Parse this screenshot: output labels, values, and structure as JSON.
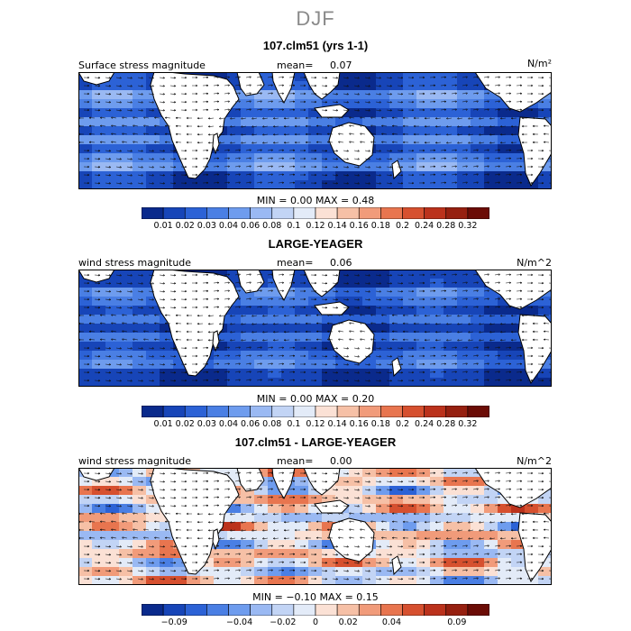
{
  "figure": {
    "title": "DJF"
  },
  "panels": [
    {
      "title": "107.clm51 (yrs 1-1)",
      "left_label": "Surface stress magnitude",
      "mean_label": "mean=",
      "mean_value": "0.07",
      "units": "N/m²",
      "minmax": "MIN =    0.00  MAX =    0.48",
      "scheme": "positive"
    },
    {
      "title": "LARGE-YEAGER",
      "left_label": "wind stress magnitude",
      "mean_label": "mean=",
      "mean_value": "0.06",
      "units": "N/m^2",
      "minmax": "MIN =    0.00  MAX =    0.20",
      "scheme": "positive"
    },
    {
      "title": "107.clm51 - LARGE-YEAGER",
      "left_label": "wind stress magnitude",
      "mean_label": "mean=",
      "mean_value": "0.00",
      "units": "N/m^2",
      "minmax": "MIN =  −0.10  MAX =    0.15",
      "scheme": "difference"
    }
  ],
  "colorbars": {
    "positive": {
      "labels": [
        "0.01",
        "0.02",
        "0.03",
        "0.04",
        "0.06",
        "0.08",
        "0.1",
        "0.12",
        "0.14",
        "0.16",
        "0.18",
        "0.2",
        "0.24",
        "0.28",
        "0.32"
      ],
      "colors": [
        "#0a2a8c",
        "#1745b8",
        "#2c62d6",
        "#4a7fe4",
        "#6e9cee",
        "#9ab9f3",
        "#c2d4f5",
        "#e3ebf8",
        "#fbe1d5",
        "#f6c0a6",
        "#f19b7a",
        "#e8754f",
        "#d6502f",
        "#bb321c",
        "#962010",
        "#6b0c06"
      ]
    },
    "difference": {
      "labels": [
        "−0.09",
        "−0.04",
        "−0.02",
        "0",
        "0.02",
        "0.04",
        "0.09"
      ],
      "label_positions": [
        1.5,
        4.5,
        6.5,
        8,
        9.5,
        11.5,
        14.5
      ],
      "colors": [
        "#0a2a8c",
        "#1745b8",
        "#2c62d6",
        "#4a7fe4",
        "#6e9cee",
        "#9ab9f3",
        "#c2d4f5",
        "#e3ebf8",
        "#fbe1d5",
        "#f6c0a6",
        "#f19b7a",
        "#e8754f",
        "#d6502f",
        "#bb321c",
        "#962010",
        "#6b0c06"
      ]
    }
  },
  "colors": {
    "land": "#ffffff",
    "coast": "#000000",
    "ocean_low": "#2b5fd0",
    "ocean_high": "#e8754f"
  }
}
